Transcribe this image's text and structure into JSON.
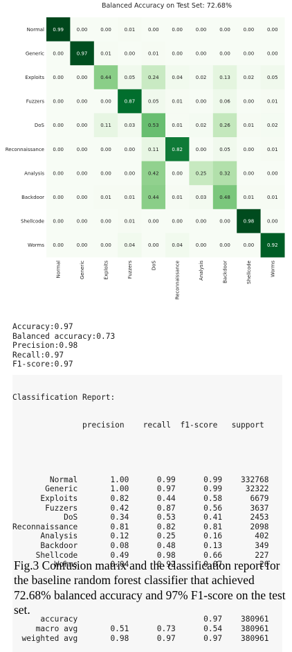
{
  "chart_data": {
    "type": "heatmap",
    "title": "Balanced Accuracy on Test Set: 72.68%",
    "row_labels": [
      "Normal",
      "Generic",
      "Exploits",
      "Fuzzers",
      "DoS",
      "Reconnaissance",
      "Analysis",
      "Backdoor",
      "Shellcode",
      "Worms"
    ],
    "col_labels": [
      "Normal",
      "Generic",
      "Exploits",
      "Fuzzers",
      "DoS",
      "Reconnaissance",
      "Analysis",
      "Backdoor",
      "Shellcode",
      "Worms"
    ],
    "values": [
      [
        0.99,
        0.0,
        0.0,
        0.01,
        0.0,
        0.0,
        0.0,
        0.0,
        0.0,
        0.0
      ],
      [
        0.0,
        0.97,
        0.01,
        0.0,
        0.01,
        0.0,
        0.0,
        0.0,
        0.0,
        0.0
      ],
      [
        0.0,
        0.0,
        0.44,
        0.05,
        0.24,
        0.04,
        0.02,
        0.13,
        0.02,
        0.05
      ],
      [
        0.0,
        0.0,
        0.0,
        0.87,
        0.05,
        0.01,
        0.0,
        0.06,
        0.0,
        0.01
      ],
      [
        0.0,
        0.0,
        0.11,
        0.03,
        0.53,
        0.01,
        0.02,
        0.26,
        0.01,
        0.02
      ],
      [
        0.0,
        0.0,
        0.0,
        0.0,
        0.11,
        0.82,
        0.0,
        0.05,
        0.0,
        0.01
      ],
      [
        0.0,
        0.0,
        0.0,
        0.0,
        0.42,
        0.0,
        0.25,
        0.32,
        0.0,
        0.0
      ],
      [
        0.0,
        0.0,
        0.01,
        0.01,
        0.44,
        0.01,
        0.03,
        0.48,
        0.01,
        0.01
      ],
      [
        0.0,
        0.0,
        0.0,
        0.01,
        0.0,
        0.0,
        0.0,
        0.0,
        0.98,
        0.0
      ],
      [
        0.0,
        0.0,
        0.0,
        0.04,
        0.0,
        0.04,
        0.0,
        0.0,
        0.0,
        0.92
      ]
    ],
    "colormap": "Greens",
    "colors": {
      "low": "#f7fcf5",
      "high": "#00441b"
    }
  },
  "metrics_lines": [
    "Accuracy:0.97",
    "Balanced accuracy:0.73",
    "Precision:0.98",
    "Recall:0.97",
    "F1-score:0.97"
  ],
  "report": {
    "title": "Classification Report:",
    "header": "               precision    recall  f1-score   support",
    "class_lines": [
      "        Normal       1.00      0.99      0.99    332768",
      "       Generic       1.00      0.97      0.99     32322",
      "      Exploits       0.82      0.44      0.58      6679",
      "       Fuzzers       0.42      0.87      0.56      3637",
      "           DoS       0.34      0.53      0.41      2453",
      "Reconnaissance       0.81      0.82      0.81      2098",
      "      Analysis       0.12      0.25      0.16       402",
      "      Backdoor       0.08      0.48      0.13       349",
      "     Shellcode       0.49      0.98      0.66       227",
      "         Worms       0.04      0.92      0.07        26"
    ],
    "summary_lines": [
      "      accuracy                           0.97    380961",
      "     macro avg       0.51      0.73      0.54    380961",
      "  weighted avg       0.98      0.97      0.97    380961"
    ]
  },
  "caption": "Fig.3 Confusion matrix and the classification report for the baseline random forest classifier that achieved 72.68% balanced accuracy and 97% F1-score on the test set."
}
